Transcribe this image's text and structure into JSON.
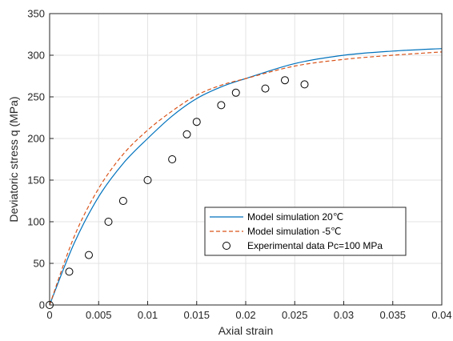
{
  "chart_data": {
    "type": "line",
    "title": "",
    "xlabel": "Axial strain",
    "ylabel": "Deviatoric stress q (MPa)",
    "xlim": [
      0,
      0.04
    ],
    "ylim": [
      0,
      350
    ],
    "grid": true,
    "legend_position": "right, below center",
    "x_ticks": [
      "0",
      "0.005",
      "0.01",
      "0.015",
      "0.02",
      "0.025",
      "0.03",
      "0.035",
      "0.04"
    ],
    "y_ticks": [
      "0",
      "50",
      "100",
      "150",
      "200",
      "250",
      "300",
      "350"
    ],
    "series": [
      {
        "name": "Model simulation 20℃",
        "style": "solid",
        "color": "#0072bd",
        "x": [
          0,
          0.0025,
          0.005,
          0.0075,
          0.01,
          0.0125,
          0.015,
          0.0175,
          0.02,
          0.025,
          0.03,
          0.035,
          0.04
        ],
        "y": [
          0,
          74,
          130,
          170,
          200,
          227,
          248,
          262,
          272,
          290,
          300,
          305,
          308
        ]
      },
      {
        "name": "Model simulation -5℃",
        "style": "dashed",
        "color": "#d95319",
        "x": [
          0,
          0.0025,
          0.005,
          0.0075,
          0.01,
          0.0125,
          0.015,
          0.0175,
          0.02,
          0.025,
          0.03,
          0.035,
          0.04
        ],
        "y": [
          0,
          82,
          140,
          181,
          210,
          233,
          252,
          264,
          272,
          287,
          295,
          300,
          304
        ]
      },
      {
        "name": "Experimental data Pc=100 MPa",
        "style": "markers",
        "color": "#000000",
        "x": [
          0,
          0.002,
          0.004,
          0.006,
          0.0075,
          0.01,
          0.0125,
          0.014,
          0.015,
          0.0175,
          0.019,
          0.022,
          0.024,
          0.026
        ],
        "y": [
          0,
          40,
          60,
          100,
          125,
          150,
          175,
          205,
          220,
          240,
          255,
          260,
          270,
          265
        ]
      }
    ]
  }
}
